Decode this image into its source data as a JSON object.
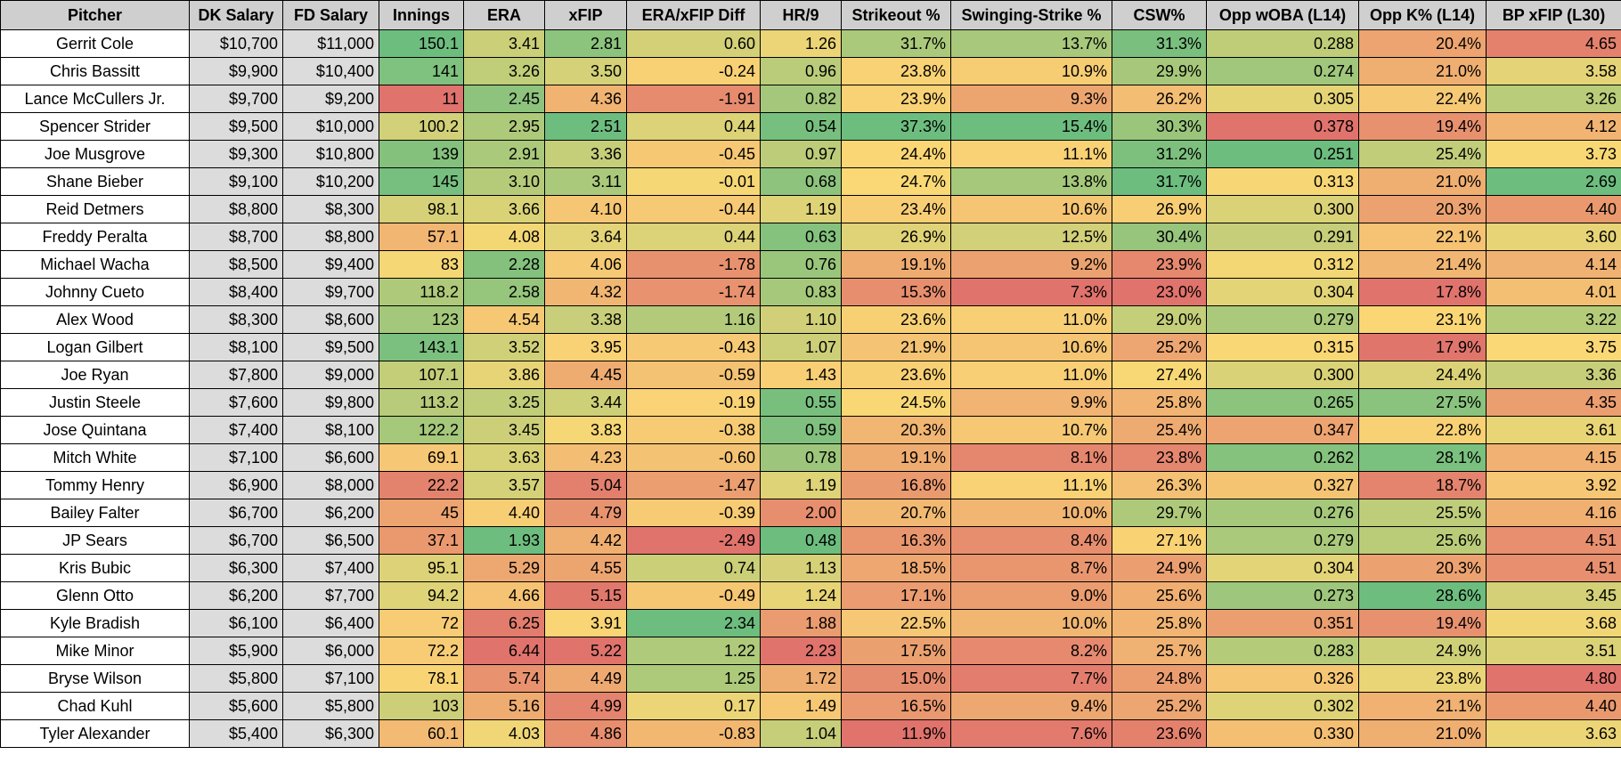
{
  "columns": [
    "Pitcher",
    "DK Salary",
    "FD Salary",
    "Innings",
    "ERA",
    "xFIP",
    "ERA/xFIP Diff",
    "HR/9",
    "Strikeout %",
    "Swinging-Strike %",
    "CSW%",
    "Opp wOBA (L14)",
    "Opp K% (L14)",
    "BP xFIP (L30)"
  ],
  "rows": [
    [
      "Gerrit Cole",
      "$10,700",
      "$11,000",
      "150.1",
      "3.41",
      "2.81",
      "0.60",
      "1.26",
      "31.7%",
      "13.7%",
      "31.3%",
      "0.288",
      "20.4%",
      "4.65"
    ],
    [
      "Chris Bassitt",
      "$9,900",
      "$10,400",
      "141",
      "3.26",
      "3.50",
      "-0.24",
      "0.96",
      "23.8%",
      "10.9%",
      "29.9%",
      "0.274",
      "21.0%",
      "3.58"
    ],
    [
      "Lance McCullers Jr.",
      "$9,700",
      "$9,200",
      "11",
      "2.45",
      "4.36",
      "-1.91",
      "0.82",
      "23.9%",
      "9.3%",
      "26.2%",
      "0.305",
      "22.4%",
      "3.26"
    ],
    [
      "Spencer Strider",
      "$9,500",
      "$10,000",
      "100.2",
      "2.95",
      "2.51",
      "0.44",
      "0.54",
      "37.3%",
      "15.4%",
      "30.3%",
      "0.378",
      "19.4%",
      "4.12"
    ],
    [
      "Joe Musgrove",
      "$9,300",
      "$10,800",
      "139",
      "2.91",
      "3.36",
      "-0.45",
      "0.97",
      "24.4%",
      "11.1%",
      "31.2%",
      "0.251",
      "25.4%",
      "3.73"
    ],
    [
      "Shane Bieber",
      "$9,100",
      "$10,200",
      "145",
      "3.10",
      "3.11",
      "-0.01",
      "0.68",
      "24.7%",
      "13.8%",
      "31.7%",
      "0.313",
      "21.0%",
      "2.69"
    ],
    [
      "Reid Detmers",
      "$8,800",
      "$8,300",
      "98.1",
      "3.66",
      "4.10",
      "-0.44",
      "1.19",
      "23.4%",
      "10.6%",
      "26.9%",
      "0.300",
      "20.3%",
      "4.40"
    ],
    [
      "Freddy Peralta",
      "$8,700",
      "$8,800",
      "57.1",
      "4.08",
      "3.64",
      "0.44",
      "0.63",
      "26.9%",
      "12.5%",
      "30.4%",
      "0.291",
      "22.1%",
      "3.60"
    ],
    [
      "Michael Wacha",
      "$8,500",
      "$9,400",
      "83",
      "2.28",
      "4.06",
      "-1.78",
      "0.76",
      "19.1%",
      "9.2%",
      "23.9%",
      "0.312",
      "21.4%",
      "4.14"
    ],
    [
      "Johnny Cueto",
      "$8,400",
      "$9,700",
      "118.2",
      "2.58",
      "4.32",
      "-1.74",
      "0.83",
      "15.3%",
      "7.3%",
      "23.0%",
      "0.304",
      "17.8%",
      "4.01"
    ],
    [
      "Alex Wood",
      "$8,300",
      "$8,600",
      "123",
      "4.54",
      "3.38",
      "1.16",
      "1.10",
      "23.6%",
      "11.0%",
      "29.0%",
      "0.279",
      "23.1%",
      "3.22"
    ],
    [
      "Logan Gilbert",
      "$8,100",
      "$9,500",
      "143.1",
      "3.52",
      "3.95",
      "-0.43",
      "1.07",
      "21.9%",
      "10.6%",
      "25.2%",
      "0.315",
      "17.9%",
      "3.75"
    ],
    [
      "Joe Ryan",
      "$7,800",
      "$9,000",
      "107.1",
      "3.86",
      "4.45",
      "-0.59",
      "1.43",
      "23.6%",
      "11.0%",
      "27.4%",
      "0.300",
      "24.4%",
      "3.36"
    ],
    [
      "Justin Steele",
      "$7,600",
      "$9,800",
      "113.2",
      "3.25",
      "3.44",
      "-0.19",
      "0.55",
      "24.5%",
      "9.9%",
      "25.8%",
      "0.265",
      "27.5%",
      "4.35"
    ],
    [
      "Jose Quintana",
      "$7,400",
      "$8,100",
      "122.2",
      "3.45",
      "3.83",
      "-0.38",
      "0.59",
      "20.3%",
      "10.7%",
      "25.4%",
      "0.347",
      "22.8%",
      "3.61"
    ],
    [
      "Mitch White",
      "$7,100",
      "$6,600",
      "69.1",
      "3.63",
      "4.23",
      "-0.60",
      "0.78",
      "19.1%",
      "8.1%",
      "23.8%",
      "0.262",
      "28.1%",
      "4.15"
    ],
    [
      "Tommy Henry",
      "$6,900",
      "$8,000",
      "22.2",
      "3.57",
      "5.04",
      "-1.47",
      "1.19",
      "16.8%",
      "11.1%",
      "26.3%",
      "0.327",
      "18.7%",
      "3.92"
    ],
    [
      "Bailey Falter",
      "$6,700",
      "$6,200",
      "45",
      "4.40",
      "4.79",
      "-0.39",
      "2.00",
      "20.7%",
      "10.0%",
      "29.7%",
      "0.276",
      "25.5%",
      "4.16"
    ],
    [
      "JP Sears",
      "$6,700",
      "$6,500",
      "37.1",
      "1.93",
      "4.42",
      "-2.49",
      "0.48",
      "16.3%",
      "8.4%",
      "27.1%",
      "0.279",
      "25.6%",
      "4.51"
    ],
    [
      "Kris Bubic",
      "$6,300",
      "$7,400",
      "95.1",
      "5.29",
      "4.55",
      "0.74",
      "1.13",
      "18.5%",
      "8.7%",
      "24.9%",
      "0.304",
      "20.3%",
      "4.51"
    ],
    [
      "Glenn Otto",
      "$6,200",
      "$7,700",
      "94.2",
      "4.66",
      "5.15",
      "-0.49",
      "1.24",
      "17.1%",
      "9.0%",
      "25.6%",
      "0.273",
      "28.6%",
      "3.45"
    ],
    [
      "Kyle Bradish",
      "$6,100",
      "$6,400",
      "72",
      "6.25",
      "3.91",
      "2.34",
      "1.88",
      "22.5%",
      "10.0%",
      "25.8%",
      "0.351",
      "19.4%",
      "3.68"
    ],
    [
      "Mike Minor",
      "$5,900",
      "$6,000",
      "72.2",
      "6.44",
      "5.22",
      "1.22",
      "2.23",
      "17.5%",
      "8.2%",
      "25.7%",
      "0.283",
      "24.9%",
      "3.51"
    ],
    [
      "Bryse Wilson",
      "$5,800",
      "$7,100",
      "78.1",
      "5.74",
      "4.49",
      "1.25",
      "1.72",
      "15.0%",
      "7.7%",
      "24.8%",
      "0.326",
      "23.8%",
      "4.80"
    ],
    [
      "Chad Kuhl",
      "$5,600",
      "$5,800",
      "103",
      "5.16",
      "4.99",
      "0.17",
      "1.49",
      "16.5%",
      "9.4%",
      "25.2%",
      "0.302",
      "21.1%",
      "4.40"
    ],
    [
      "Tyler Alexander",
      "$5,400",
      "$6,300",
      "60.1",
      "4.03",
      "4.86",
      "-0.83",
      "1.04",
      "11.9%",
      "7.6%",
      "23.6%",
      "0.330",
      "21.0%",
      "3.63"
    ]
  ],
  "scale_colors": {
    "good": "#6dbd7f",
    "mid": "#fad875",
    "bad": "#e0736c"
  }
}
